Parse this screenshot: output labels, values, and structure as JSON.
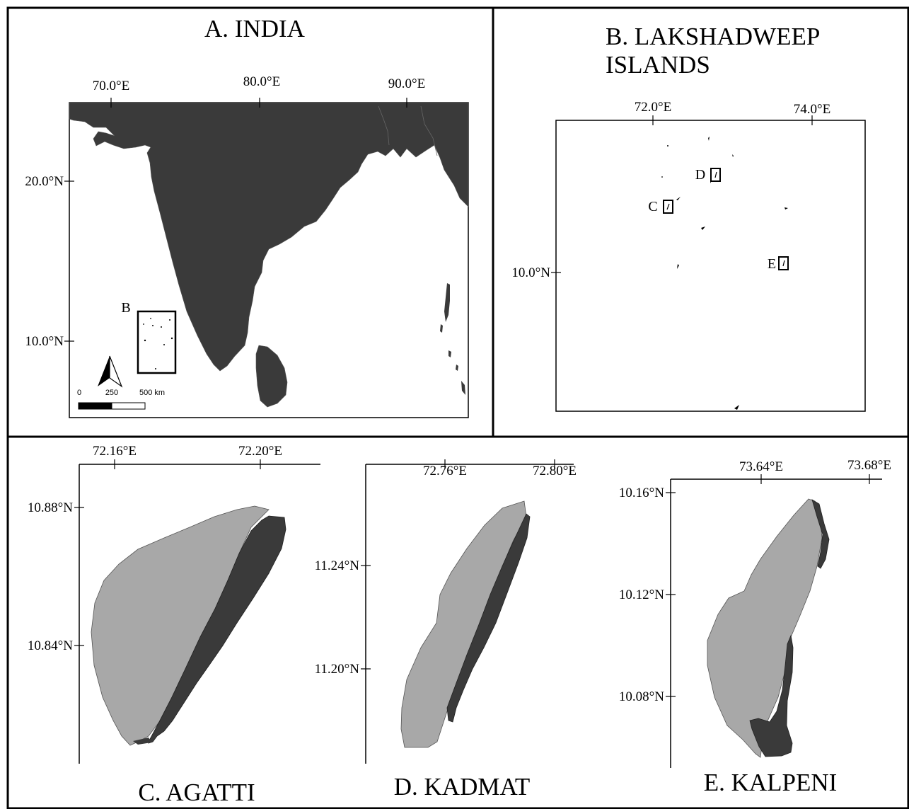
{
  "colors": {
    "land": "#3a3a3a",
    "lagoon": "#a8a8a8",
    "frame": "#000000",
    "background": "#ffffff"
  },
  "panel_a": {
    "title": "A. INDIA",
    "lon_ticks": [
      "70.0°E",
      "80.0°E",
      "90.0°E"
    ],
    "lat_ticks": [
      "20.0°N",
      "10.0°N"
    ],
    "inset_label": "B",
    "north_arrow_icon": "north-arrow-icon",
    "scale_bar": {
      "labels": [
        "0",
        "250",
        "500 km"
      ]
    }
  },
  "panel_b": {
    "title_line1": "B. LAKSHADWEEP",
    "title_line2": "ISLANDS",
    "lon_ticks": [
      "72.0°E",
      "74.0°E"
    ],
    "lat_ticks": [
      "10.0°N"
    ],
    "inset_labels": [
      "D",
      "C",
      "E"
    ]
  },
  "panel_c": {
    "title": "C. AGATTI",
    "lon_ticks": [
      "72.16°E",
      "72.20°E"
    ],
    "lat_ticks": [
      "10.88°N",
      "10.84°N"
    ]
  },
  "panel_d": {
    "title": "D. KADMAT",
    "lon_ticks": [
      "72.76°E",
      "72.80°E"
    ],
    "lat_ticks": [
      "11.24°N",
      "11.20°N"
    ]
  },
  "panel_e": {
    "title": "E. KALPENI",
    "lon_ticks": [
      "73.64°E",
      "73.68°E"
    ],
    "lat_ticks": [
      "10.16°N",
      "10.12°N",
      "10.08°N"
    ]
  }
}
